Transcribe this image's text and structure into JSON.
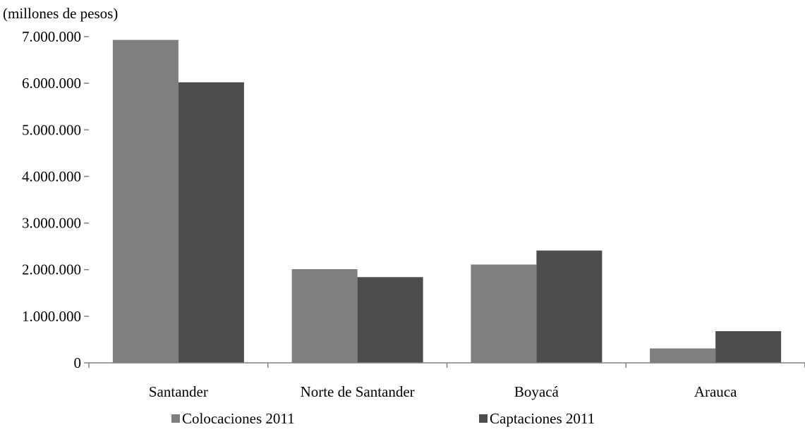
{
  "chart_data": {
    "type": "bar",
    "unit_label": "(millones de pesos)",
    "categories": [
      "Santander",
      "Norte de Santander",
      "Boyacá",
      "Arauca"
    ],
    "series": [
      {
        "name": "Colocaciones 2011",
        "color": "#7f7f7f",
        "values": [
          6930000,
          2010000,
          2110000,
          310000
        ]
      },
      {
        "name": "Captaciones 2011",
        "color": "#4d4d4d",
        "values": [
          6020000,
          1840000,
          2410000,
          680000
        ]
      }
    ],
    "ylim": [
      0,
      7000000
    ],
    "yticks": [
      0,
      1000000,
      2000000,
      3000000,
      4000000,
      5000000,
      6000000,
      7000000
    ],
    "ytick_labels": [
      "0",
      "1.000.000",
      "2.000.000",
      "3.000.000",
      "4.000.000",
      "5.000.000",
      "6.000.000",
      "7.000.000"
    ],
    "grid": false,
    "legend_position": "bottom"
  }
}
